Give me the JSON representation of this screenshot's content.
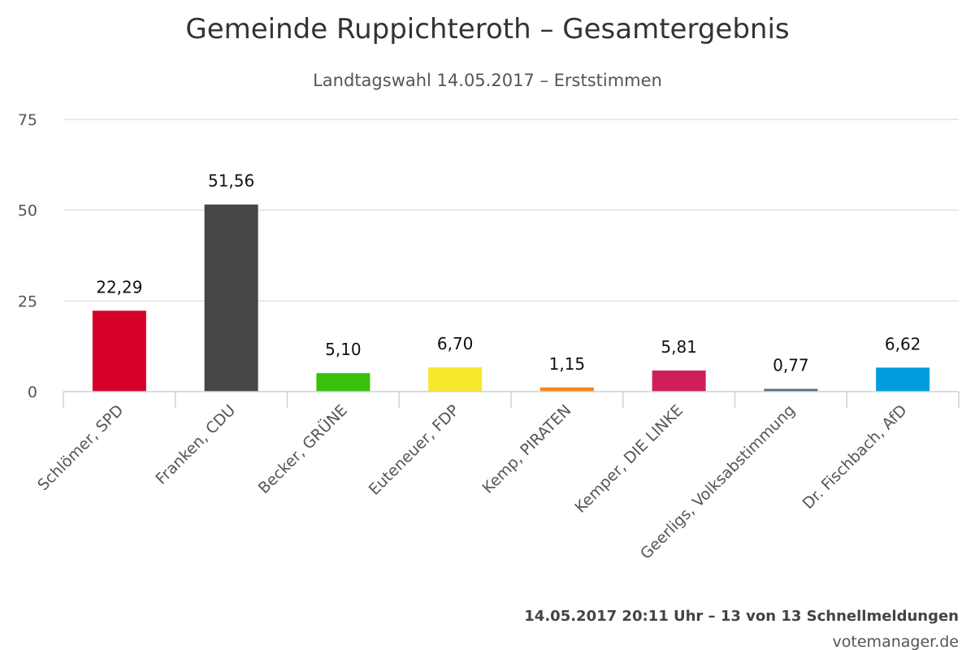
{
  "chart_data": {
    "type": "bar",
    "title": "Gemeinde Ruppichteroth – Gesamtergebnis",
    "subtitle": "Landtagswahl 14.05.2017 – Erststimmen",
    "xlabel": "",
    "ylabel": "",
    "ylim": [
      0,
      75
    ],
    "yticks": [
      "0",
      "25",
      "50",
      "75"
    ],
    "grid": true,
    "legend": "none",
    "categories": [
      "Schlömer, SPD",
      "Franken, CDU",
      "Becker, GRÜNE",
      "Euteneuer, FDP",
      "Kemp, PIRATEN",
      "Kemper, DIE LINKE",
      "Geerligs, Volksabstimmung",
      "Dr. Fischbach, AfD"
    ],
    "values": [
      22.29,
      51.56,
      5.1,
      6.7,
      1.15,
      5.81,
      0.77,
      6.62
    ],
    "value_labels": [
      "22,29",
      "51,56",
      "5,10",
      "6,70",
      "1,15",
      "5,81",
      "0,77",
      "6,62"
    ],
    "colors": [
      "#d7002a",
      "#464646",
      "#3ac10c",
      "#f7e82b",
      "#f28a12",
      "#cf1e59",
      "#5e6a80",
      "#009ddc"
    ]
  },
  "footer": {
    "timestamp": "14.05.2017 20:11 Uhr – 13 von 13 Schnellmeldungen",
    "source": "votemanager.de"
  }
}
